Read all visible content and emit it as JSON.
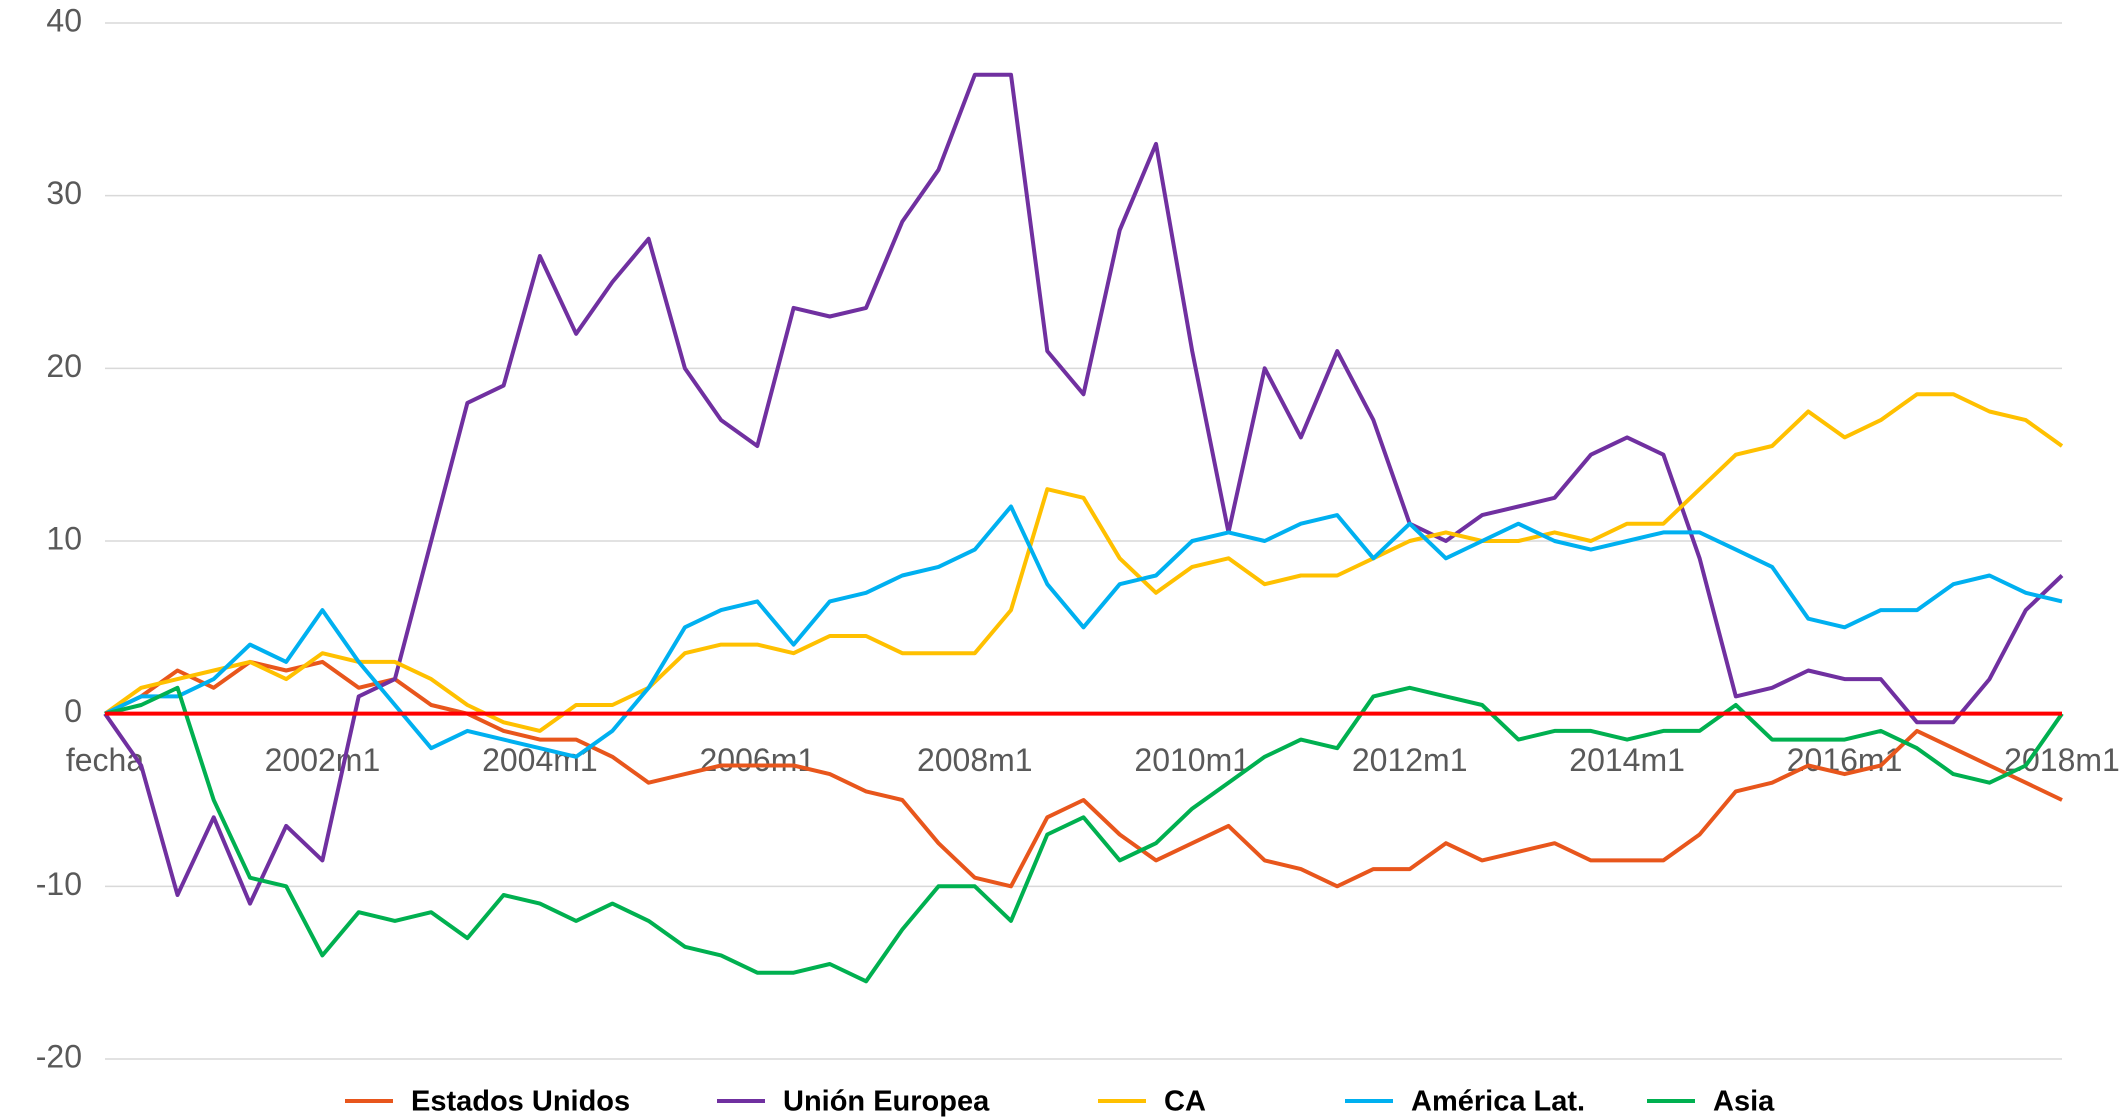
{
  "chart_data": {
    "type": "line",
    "categories": [
      "fecha",
      null,
      null,
      null,
      null,
      null,
      "2002m1",
      null,
      null,
      null,
      null,
      null,
      "2004m1",
      null,
      null,
      null,
      null,
      null,
      "2006m1",
      null,
      null,
      null,
      null,
      null,
      "2008m1",
      null,
      null,
      null,
      null,
      null,
      "2010m1",
      null,
      null,
      null,
      null,
      null,
      "2012m1",
      null,
      null,
      null,
      null,
      null,
      "2014m1",
      null,
      null,
      null,
      null,
      null,
      "2016m1",
      null,
      null,
      null,
      null,
      null,
      "2018m1"
    ],
    "series": [
      {
        "name": "Estados Unidos",
        "color": "#e8561c",
        "values": [
          0,
          1,
          2.5,
          1.5,
          3,
          2.5,
          3,
          1.5,
          2,
          0.5,
          0,
          -1,
          -1.5,
          -1.5,
          -2.5,
          -4,
          -3.5,
          -3,
          -3,
          -3,
          -3.5,
          -4.5,
          -5,
          -7.5,
          -9.5,
          -10,
          -6,
          -5,
          -7,
          -8.5,
          -7.5,
          -6.5,
          -8.5,
          -9,
          -10,
          -9,
          -9,
          -7.5,
          -8.5,
          -8,
          -7.5,
          -8.5,
          -8.5,
          -8.5,
          -7,
          -4.5,
          -4,
          -3,
          -3.5,
          -3,
          -1,
          -2,
          -3,
          -4,
          -5
        ]
      },
      {
        "name": "Unión Europea",
        "color": "#7030a0",
        "values": [
          0,
          -3,
          -10.5,
          -6,
          -11,
          -6.5,
          -8.5,
          1,
          2,
          10,
          18,
          19,
          26.5,
          22,
          25,
          27.5,
          20,
          17,
          15.5,
          23.5,
          23,
          23.5,
          28.5,
          31.5,
          37,
          37,
          21,
          18.5,
          28,
          33,
          21,
          10.5,
          20,
          16,
          21,
          17,
          11,
          10,
          11.5,
          12,
          12.5,
          15,
          16,
          15,
          9,
          1,
          1.5,
          2.5,
          2,
          2,
          -0.5,
          -0.5,
          2,
          6,
          8
        ]
      },
      {
        "name": "CA",
        "color": "#ffc000",
        "values": [
          0,
          1.5,
          2,
          2.5,
          3,
          2,
          3.5,
          3,
          3,
          2,
          0.5,
          -0.5,
          -1,
          0.5,
          0.5,
          1.5,
          3.5,
          4,
          4,
          3.5,
          4.5,
          4.5,
          3.5,
          3.5,
          3.5,
          6,
          13,
          12.5,
          9,
          7,
          8.5,
          9,
          7.5,
          8,
          8,
          9,
          10,
          10.5,
          10,
          10,
          10.5,
          10,
          11,
          11,
          13,
          15,
          15.5,
          17.5,
          16,
          17,
          18.5,
          18.5,
          17.5,
          17,
          15.5
        ]
      },
      {
        "name": "América Lat.",
        "color": "#00b0f0",
        "values": [
          0,
          1,
          1,
          2,
          4,
          3,
          6,
          3,
          0.5,
          -2,
          -1,
          -1.5,
          -2,
          -2.5,
          -1,
          1.5,
          5,
          6,
          6.5,
          4,
          6.5,
          7,
          8,
          8.5,
          9.5,
          12,
          7.5,
          5,
          7.5,
          8,
          10,
          10.5,
          10,
          11,
          11.5,
          9,
          11,
          9,
          10,
          11,
          10,
          9.5,
          10,
          10.5,
          10.5,
          9.5,
          8.5,
          5.5,
          5,
          6,
          6,
          7.5,
          8,
          7,
          6.5
        ]
      },
      {
        "name": "Asia",
        "color": "#00b050",
        "values": [
          0,
          0.5,
          1.5,
          -5,
          -9.5,
          -10,
          -14,
          -11.5,
          -12,
          -11.5,
          -13,
          -10.5,
          -11,
          -12,
          -11,
          -12,
          -13.5,
          -14,
          -15,
          -15,
          -14.5,
          -15.5,
          -12.5,
          -10,
          -10,
          -12,
          -7,
          -6,
          -8.5,
          -7.5,
          -5.5,
          -4,
          -2.5,
          -1.5,
          -2,
          1,
          1.5,
          1,
          0.5,
          -1.5,
          -1,
          -1,
          -1.5,
          -1,
          -1,
          0.5,
          -1.5,
          -1.5,
          -1.5,
          -1,
          -2,
          -3.5,
          -4,
          -3,
          0
        ]
      }
    ],
    "ylim": [
      -20,
      40
    ],
    "yticks": [
      -20,
      -10,
      0,
      10,
      20,
      30,
      40
    ],
    "grid": true,
    "zero_line_color": "#ff0000",
    "legend": "bottom"
  }
}
